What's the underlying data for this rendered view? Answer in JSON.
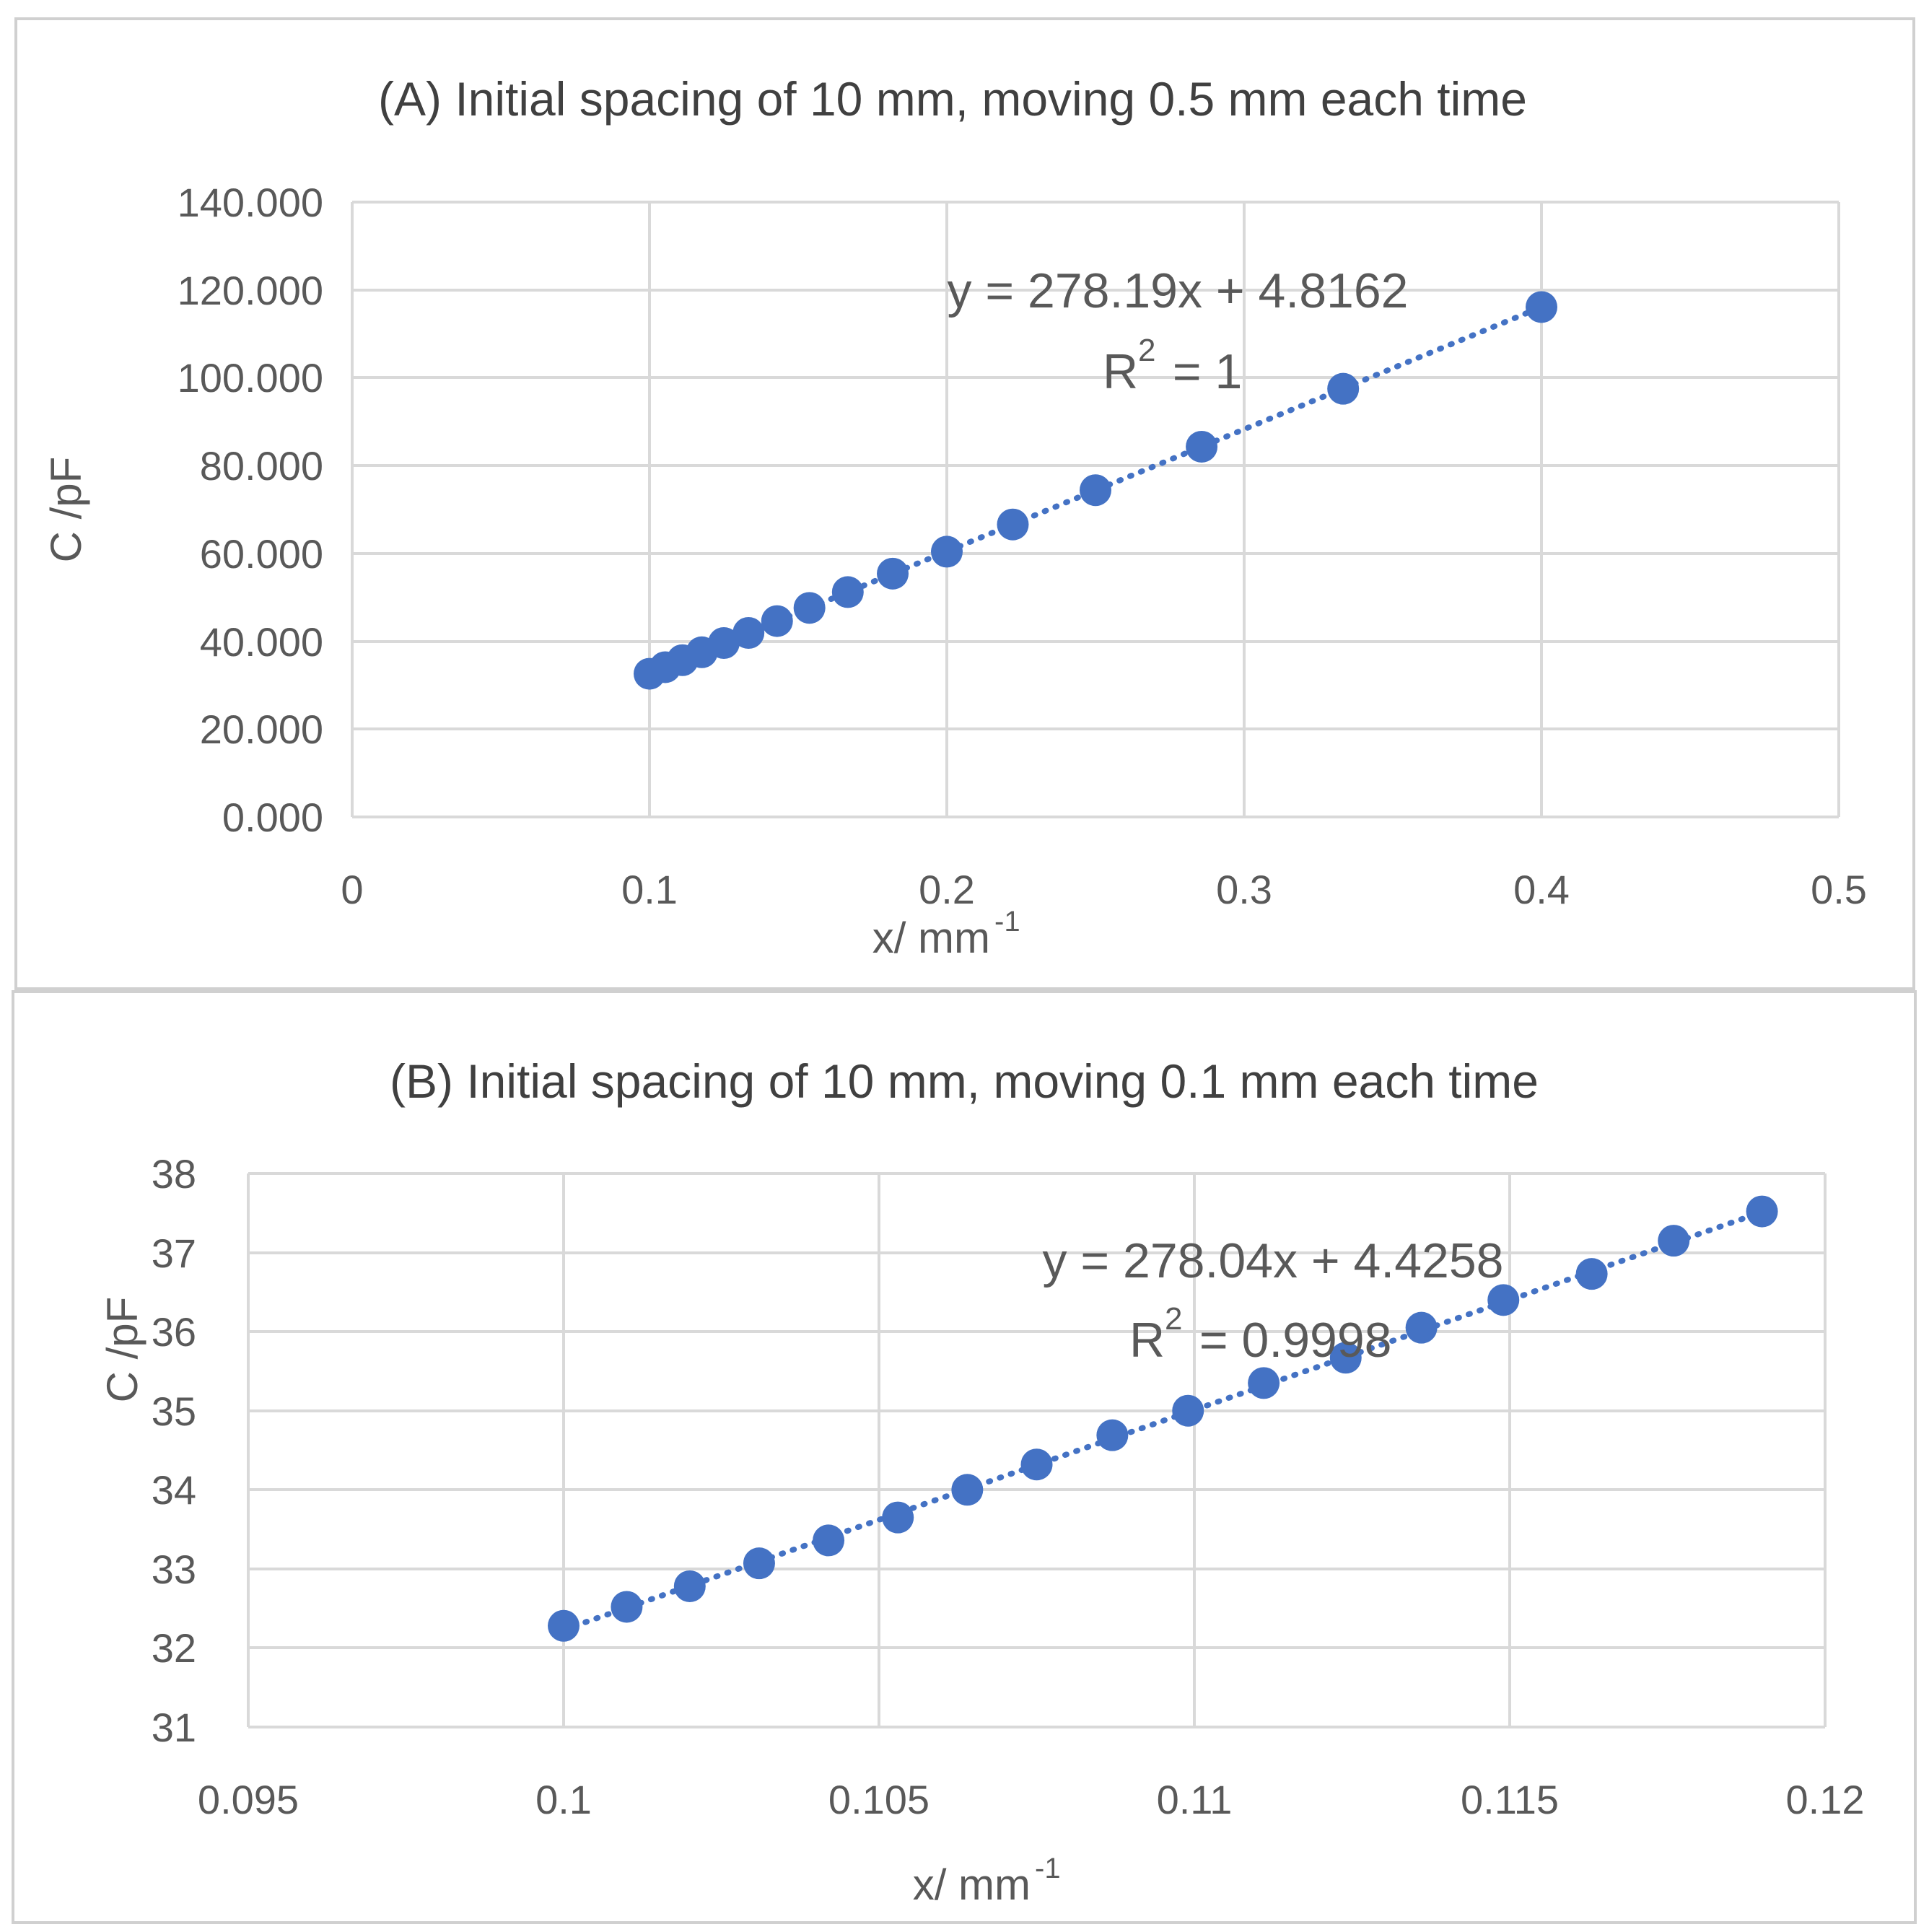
{
  "chart_data": [
    {
      "type": "scatter",
      "title": "(A) Initial spacing of 10 mm, moving 0.5 mm each time",
      "xlabel": "x/ mm",
      "xlabel_sup": "-1",
      "ylabel": "C /pF",
      "xlim": [
        0,
        0.5
      ],
      "ylim": [
        0,
        140
      ],
      "xticks": [
        "0",
        "0.1",
        "0.2",
        "0.3",
        "0.4",
        "0.5"
      ],
      "yticks": [
        "0.000",
        "20.000",
        "40.000",
        "60.000",
        "80.000",
        "100.000",
        "120.000",
        "140.000"
      ],
      "grid": "vertical and horizontal",
      "series": [
        {
          "name": "C",
          "x": [
            0.1,
            0.1053,
            0.1111,
            0.1176,
            0.125,
            0.1333,
            0.1429,
            0.1538,
            0.1667,
            0.1818,
            0.2,
            0.2222,
            0.25,
            0.2857,
            0.3333,
            0.4
          ],
          "y": [
            32.6,
            34.1,
            35.7,
            37.5,
            39.6,
            41.9,
            44.6,
            47.6,
            51.2,
            55.4,
            60.4,
            66.6,
            74.4,
            84.3,
            97.5,
            116.1
          ]
        }
      ],
      "trendline": {
        "type": "linear",
        "slope": 278.19,
        "intercept": 4.8162,
        "x_range": [
          0.1,
          0.4
        ]
      },
      "equation": "y = 278.19x + 4.8162",
      "r2_prefix": "R",
      "r2_sup": "2",
      "r2_value": " = 1"
    },
    {
      "type": "scatter",
      "title": "(B) Initial spacing of 10 mm, moving 0.1 mm each time",
      "xlabel": "x/ mm",
      "xlabel_sup": "-1",
      "ylabel": "C /pF",
      "xlim": [
        0.095,
        0.12
      ],
      "ylim": [
        31,
        38
      ],
      "xticks": [
        "0.095",
        "0.1",
        "0.105",
        "0.11",
        "0.115",
        "0.12"
      ],
      "yticks": [
        "31",
        "32",
        "33",
        "34",
        "35",
        "36",
        "37",
        "38"
      ],
      "grid": "vertical and horizontal",
      "series": [
        {
          "name": "C",
          "x": [
            0.1,
            0.101,
            0.102,
            0.1031,
            0.1042,
            0.1053,
            0.1064,
            0.1075,
            0.1087,
            0.1099,
            0.1111,
            0.1124,
            0.1136,
            0.1149,
            0.1163,
            0.1176,
            0.119
          ],
          "y": [
            32.28,
            32.52,
            32.78,
            33.07,
            33.36,
            33.65,
            34.0,
            34.32,
            34.69,
            35.0,
            35.35,
            35.67,
            36.05,
            36.4,
            36.73,
            37.15,
            37.52
          ]
        }
      ],
      "trendline": {
        "type": "linear",
        "slope": 278.04,
        "intercept": 4.4258,
        "x_range": [
          0.1,
          0.119
        ]
      },
      "equation": "y = 278.04x + 4.4258",
      "r2_prefix": "R",
      "r2_sup": "2",
      "r2_value": " = 0.9998"
    }
  ],
  "colors": {
    "marker": "#4472c4",
    "grid": "#d9d9d9",
    "text": "#595959"
  }
}
